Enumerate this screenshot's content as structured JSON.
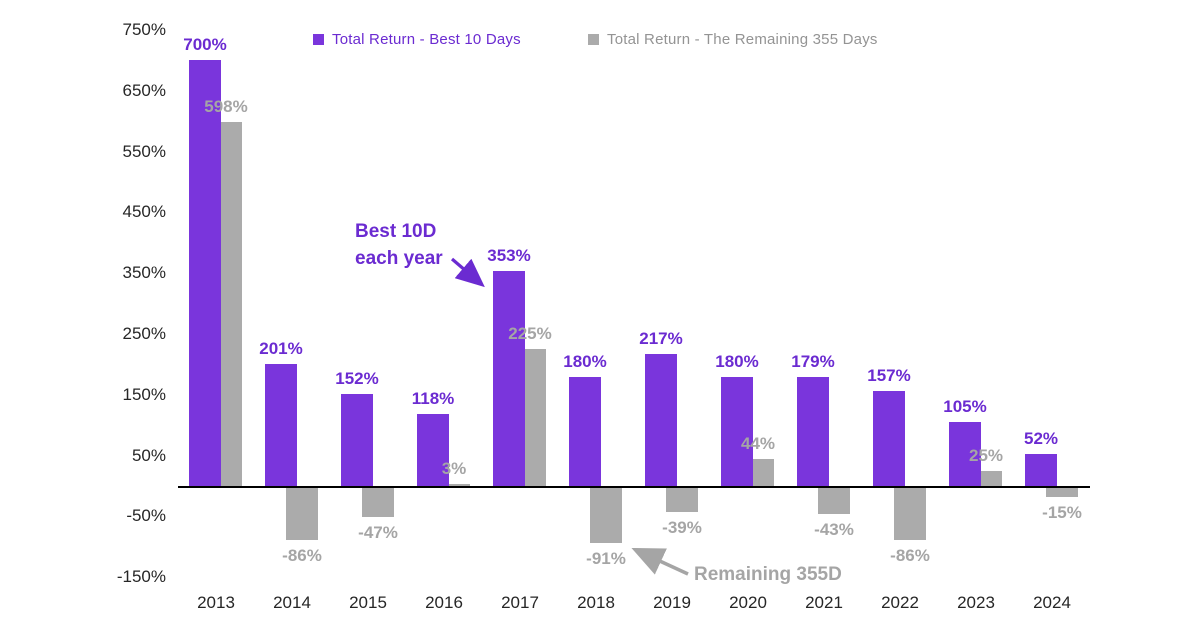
{
  "chart_data": {
    "type": "bar",
    "title": "",
    "categories": [
      "2013",
      "2014",
      "2015",
      "2016",
      "2017",
      "2018",
      "2019",
      "2020",
      "2021",
      "2022",
      "2023",
      "2024"
    ],
    "series": [
      {
        "name": "Total Return - Best 10 Days",
        "color": "#7A35DC",
        "label_color": "#6B2BD1",
        "values": [
          700,
          201,
          152,
          118,
          353,
          180,
          217,
          180,
          179,
          157,
          105,
          52
        ],
        "labels": [
          "700%",
          "201%",
          "152%",
          "118%",
          "353%",
          "180%",
          "217%",
          "180%",
          "179%",
          "157%",
          "105%",
          "52%"
        ]
      },
      {
        "name": "Total Return - The Remaining 355 Days",
        "color": "#ABABAB",
        "label_color": "#A5A5A5",
        "values": [
          598,
          -86,
          -47,
          3,
          225,
          -91,
          -39,
          44,
          -43,
          -86,
          25,
          -15
        ],
        "labels": [
          "598%",
          "-86%",
          "-47%",
          "3%",
          "225%",
          "-91%",
          "-39%",
          "44%",
          "-43%",
          "-86%",
          "25%",
          "-15%"
        ]
      }
    ],
    "y_axis": {
      "tick_values": [
        750,
        650,
        550,
        450,
        350,
        250,
        150,
        50,
        -50,
        -150
      ],
      "tick_labels": [
        "750%",
        "650%",
        "550%",
        "450%",
        "350%",
        "250%",
        "150%",
        "50%",
        "-50%",
        "-150%"
      ]
    },
    "ylim": [
      -150,
      750
    ],
    "grid": false,
    "legend_position": "top",
    "annotations": [
      {
        "id": "best-10d",
        "lines": [
          "Best 10D",
          "each year"
        ],
        "color": "#6B2BD1",
        "target_year": "2017"
      },
      {
        "id": "remaining-355d",
        "lines": [
          "Remaining 355D"
        ],
        "color": "#A5A5A5",
        "target_year": "2018"
      }
    ],
    "legend_text_colors": [
      "#6B2BD1",
      "#949494"
    ]
  }
}
